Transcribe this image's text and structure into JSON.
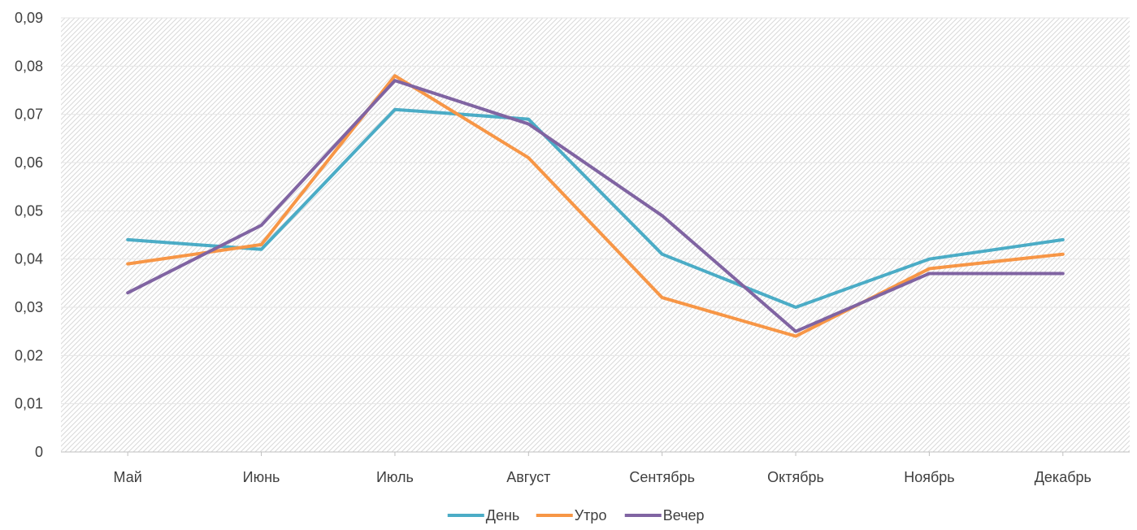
{
  "chart_data": {
    "type": "line",
    "title": "",
    "xlabel": "",
    "ylabel": "",
    "categories": [
      "Май",
      "Июнь",
      "Июль",
      "Август",
      "Сентябрь",
      "Октябрь",
      "Ноябрь",
      "Декабрь"
    ],
    "ylim": [
      0,
      0.09
    ],
    "yticks": [
      0,
      0.01,
      0.02,
      0.03,
      0.04,
      0.05,
      0.06,
      0.07,
      0.08,
      0.09
    ],
    "ytick_labels": [
      "0",
      "0,01",
      "0,02",
      "0,03",
      "0,04",
      "0,05",
      "0,06",
      "0,07",
      "0,08",
      "0,09"
    ],
    "grid": true,
    "plot_background": "diagonal hatch",
    "legend_position": "bottom",
    "series": [
      {
        "name": "День",
        "color": "#4BACC6",
        "values": [
          0.044,
          0.042,
          0.071,
          0.069,
          0.041,
          0.03,
          0.04,
          0.044
        ]
      },
      {
        "name": "Утро",
        "color": "#F79646",
        "values": [
          0.039,
          0.043,
          0.078,
          0.061,
          0.032,
          0.024,
          0.038,
          0.041
        ]
      },
      {
        "name": "Вечер",
        "color": "#8064A2",
        "values": [
          0.033,
          0.047,
          0.077,
          0.068,
          0.049,
          0.025,
          0.037,
          0.037
        ]
      }
    ]
  }
}
